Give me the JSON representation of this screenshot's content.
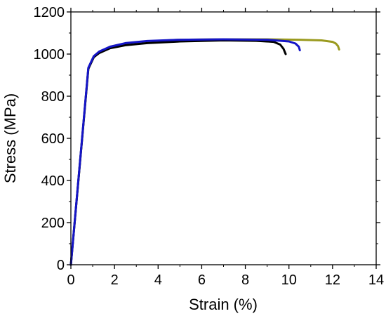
{
  "chart_data": {
    "type": "line",
    "title": "",
    "xlabel": "Strain (%)",
    "ylabel": "Stress (MPa)",
    "xlim": [
      0,
      14
    ],
    "ylim": [
      0,
      1200
    ],
    "xticks": [
      "0",
      "2",
      "4",
      "6",
      "8",
      "10",
      "12",
      "14"
    ],
    "yticks": [
      "0",
      "200",
      "400",
      "600",
      "800",
      "1000",
      "1200"
    ],
    "grid": false,
    "legend": "none",
    "series": [
      {
        "color": "#9a9a1e",
        "x": [
          0,
          0.8,
          1.05,
          1.3,
          1.8,
          2.5,
          3.5,
          5,
          7,
          9,
          10.5,
          11.5,
          12.0,
          12.15,
          12.25,
          12.3
        ],
        "y": [
          0,
          930,
          990,
          1010,
          1035,
          1050,
          1060,
          1068,
          1070,
          1070,
          1068,
          1065,
          1058,
          1050,
          1038,
          1022
        ]
      },
      {
        "color": "#000000",
        "x": [
          0,
          0.8,
          1.05,
          1.3,
          1.8,
          2.5,
          3.5,
          5,
          7,
          8.5,
          9.3,
          9.6,
          9.75,
          9.85
        ],
        "y": [
          0,
          930,
          985,
          1005,
          1028,
          1042,
          1052,
          1060,
          1065,
          1063,
          1058,
          1045,
          1025,
          1000
        ]
      },
      {
        "color": "#1515c8",
        "x": [
          0,
          0.8,
          1.05,
          1.3,
          1.8,
          2.5,
          3.5,
          5,
          7,
          9,
          10.0,
          10.3,
          10.45,
          10.5
        ],
        "y": [
          0,
          935,
          990,
          1012,
          1035,
          1052,
          1062,
          1068,
          1070,
          1068,
          1060,
          1050,
          1035,
          1018
        ]
      }
    ]
  }
}
